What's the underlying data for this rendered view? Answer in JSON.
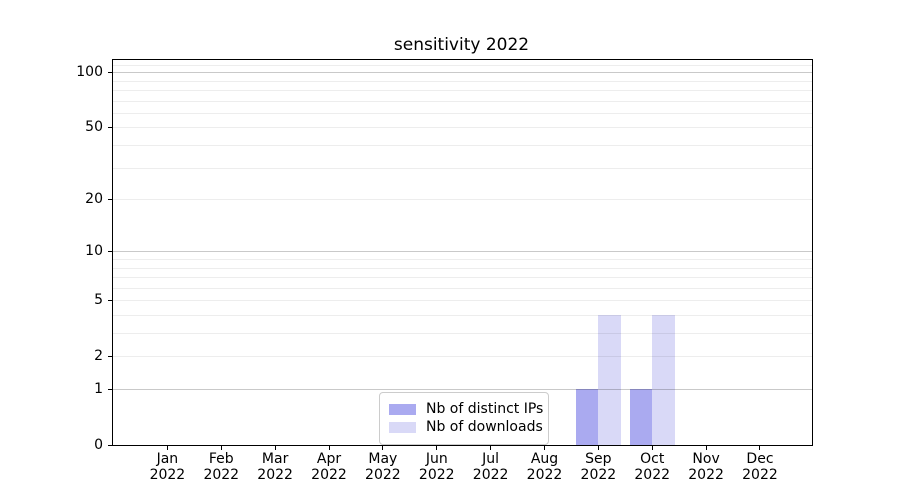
{
  "figure": {
    "background": "#ffffff"
  },
  "chart_data": {
    "type": "bar",
    "title": "sensitivity 2022",
    "x_categories": [
      "Jan",
      "Feb",
      "Mar",
      "Apr",
      "May",
      "Jun",
      "Jul",
      "Aug",
      "Sep",
      "Oct",
      "Nov",
      "Dec"
    ],
    "x_category_sublabel": "2022",
    "series": [
      {
        "name": "Nb of distinct IPs",
        "color": "#aaaaf0",
        "values": [
          0,
          0,
          0,
          0,
          0,
          0,
          0,
          0,
          1,
          1,
          0,
          0
        ]
      },
      {
        "name": "Nb of downloads",
        "color": "#d9d9f7",
        "values": [
          0,
          0,
          0,
          0,
          0,
          0,
          0,
          0,
          4,
          4,
          0,
          0
        ]
      }
    ],
    "y_scale": "log1p",
    "y_ticks": [
      0,
      1,
      2,
      5,
      10,
      20,
      50,
      100
    ],
    "y_gridlines_major": [
      1,
      10,
      100
    ],
    "y_gridlines_minor": [
      2,
      3,
      4,
      5,
      6,
      7,
      8,
      9,
      20,
      30,
      40,
      50,
      60,
      70,
      80,
      90,
      110
    ],
    "ylim": [
      0,
      116.5
    ],
    "grid": "on",
    "legend_position": "lower center"
  }
}
